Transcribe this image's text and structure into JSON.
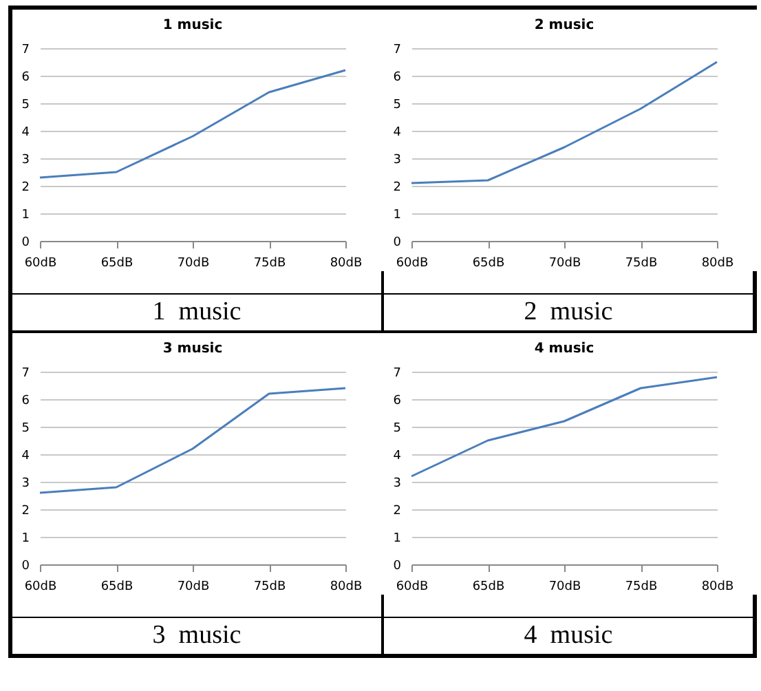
{
  "chart_data": [
    {
      "type": "line",
      "title": "1 music",
      "categories": [
        "60dB",
        "65dB",
        "70dB",
        "75dB",
        "80dB"
      ],
      "series": [
        {
          "color": "#4a7ebb",
          "values": [
            2.3,
            2.5,
            3.8,
            5.4,
            6.2
          ]
        }
      ],
      "ylim": [
        0,
        7
      ],
      "yticks": [
        0,
        1,
        2,
        3,
        4,
        5,
        6,
        7
      ],
      "grid": "y",
      "annotations": [
        "1  music"
      ]
    },
    {
      "type": "line",
      "title": "2 music",
      "categories": [
        "60dB",
        "65dB",
        "70dB",
        "75dB",
        "80dB"
      ],
      "series": [
        {
          "color": "#4a7ebb",
          "values": [
            2.1,
            2.2,
            3.4,
            4.8,
            6.5
          ]
        }
      ],
      "ylim": [
        0,
        7
      ],
      "yticks": [
        0,
        1,
        2,
        3,
        4,
        5,
        6,
        7
      ],
      "grid": "y",
      "annotations": [
        "2  music"
      ]
    },
    {
      "type": "line",
      "title": "3 music",
      "categories": [
        "60dB",
        "65dB",
        "70dB",
        "75dB",
        "80dB"
      ],
      "series": [
        {
          "color": "#4a7ebb",
          "values": [
            2.6,
            2.8,
            4.2,
            6.2,
            6.4
          ]
        }
      ],
      "ylim": [
        0,
        7
      ],
      "yticks": [
        0,
        1,
        2,
        3,
        4,
        5,
        6,
        7
      ],
      "grid": "y",
      "annotations": [
        "3  music"
      ]
    },
    {
      "type": "line",
      "title": "4 music",
      "categories": [
        "60dB",
        "65dB",
        "70dB",
        "75dB",
        "80dB"
      ],
      "series": [
        {
          "color": "#4a7ebb",
          "values": [
            3.2,
            4.5,
            5.2,
            6.4,
            6.8
          ]
        }
      ],
      "ylim": [
        0,
        7
      ],
      "yticks": [
        0,
        1,
        2,
        3,
        4,
        5,
        6,
        7
      ],
      "grid": "y",
      "annotations": [
        "4  music"
      ]
    }
  ]
}
